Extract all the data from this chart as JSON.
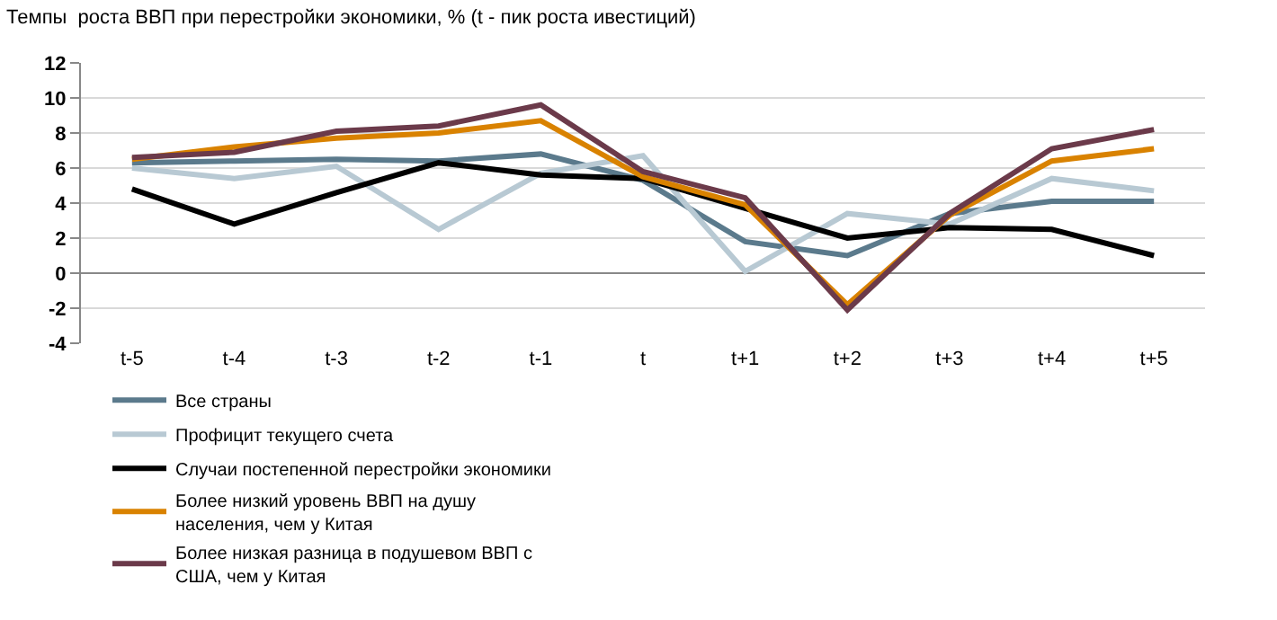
{
  "chart_data": {
    "type": "line",
    "title": "Темпы  роста ВВП при перестройки экономики, % (t - пик роста ивестиций)",
    "categories": [
      "t-5",
      "t-4",
      "t-3",
      "t-2",
      "t-1",
      "t",
      "t+1",
      "t+2",
      "t+3",
      "t+4",
      "t+5"
    ],
    "series": [
      {
        "name": "Все страны",
        "color": "#5b7a8c",
        "values": [
          6.3,
          6.4,
          6.5,
          6.4,
          6.8,
          5.3,
          1.8,
          1.0,
          3.4,
          4.1,
          4.1
        ]
      },
      {
        "name": "Профицит текущего счета",
        "color": "#b8c9d3",
        "values": [
          6.0,
          5.4,
          6.1,
          2.5,
          5.7,
          6.7,
          0.1,
          3.4,
          2.8,
          5.4,
          4.7
        ]
      },
      {
        "name": "Случаи постепенной перестройки экономики",
        "color": "#000000",
        "values": [
          4.8,
          2.8,
          4.6,
          6.3,
          5.6,
          5.4,
          3.7,
          2.0,
          2.6,
          2.5,
          1.0
        ]
      },
      {
        "name": "Более низкий уровень ВВП на душу населения, чем у Китая",
        "color": "#d98200",
        "values": [
          6.5,
          7.2,
          7.7,
          8.0,
          8.7,
          5.5,
          3.9,
          -1.8,
          3.3,
          6.4,
          7.1
        ]
      },
      {
        "name": "Более низкая разница в подушевом ВВП с США, чем у Китая",
        "color": "#6b3a4a",
        "values": [
          6.6,
          6.9,
          8.1,
          8.4,
          9.6,
          5.8,
          4.3,
          -2.1,
          3.4,
          7.1,
          8.2
        ]
      }
    ],
    "ylim": [
      -4,
      12
    ],
    "yticks": [
      -4,
      -2,
      0,
      2,
      4,
      6,
      8,
      10,
      12
    ],
    "grid": "y",
    "legend": "bottom",
    "marker": "none",
    "line_style": "solid"
  }
}
